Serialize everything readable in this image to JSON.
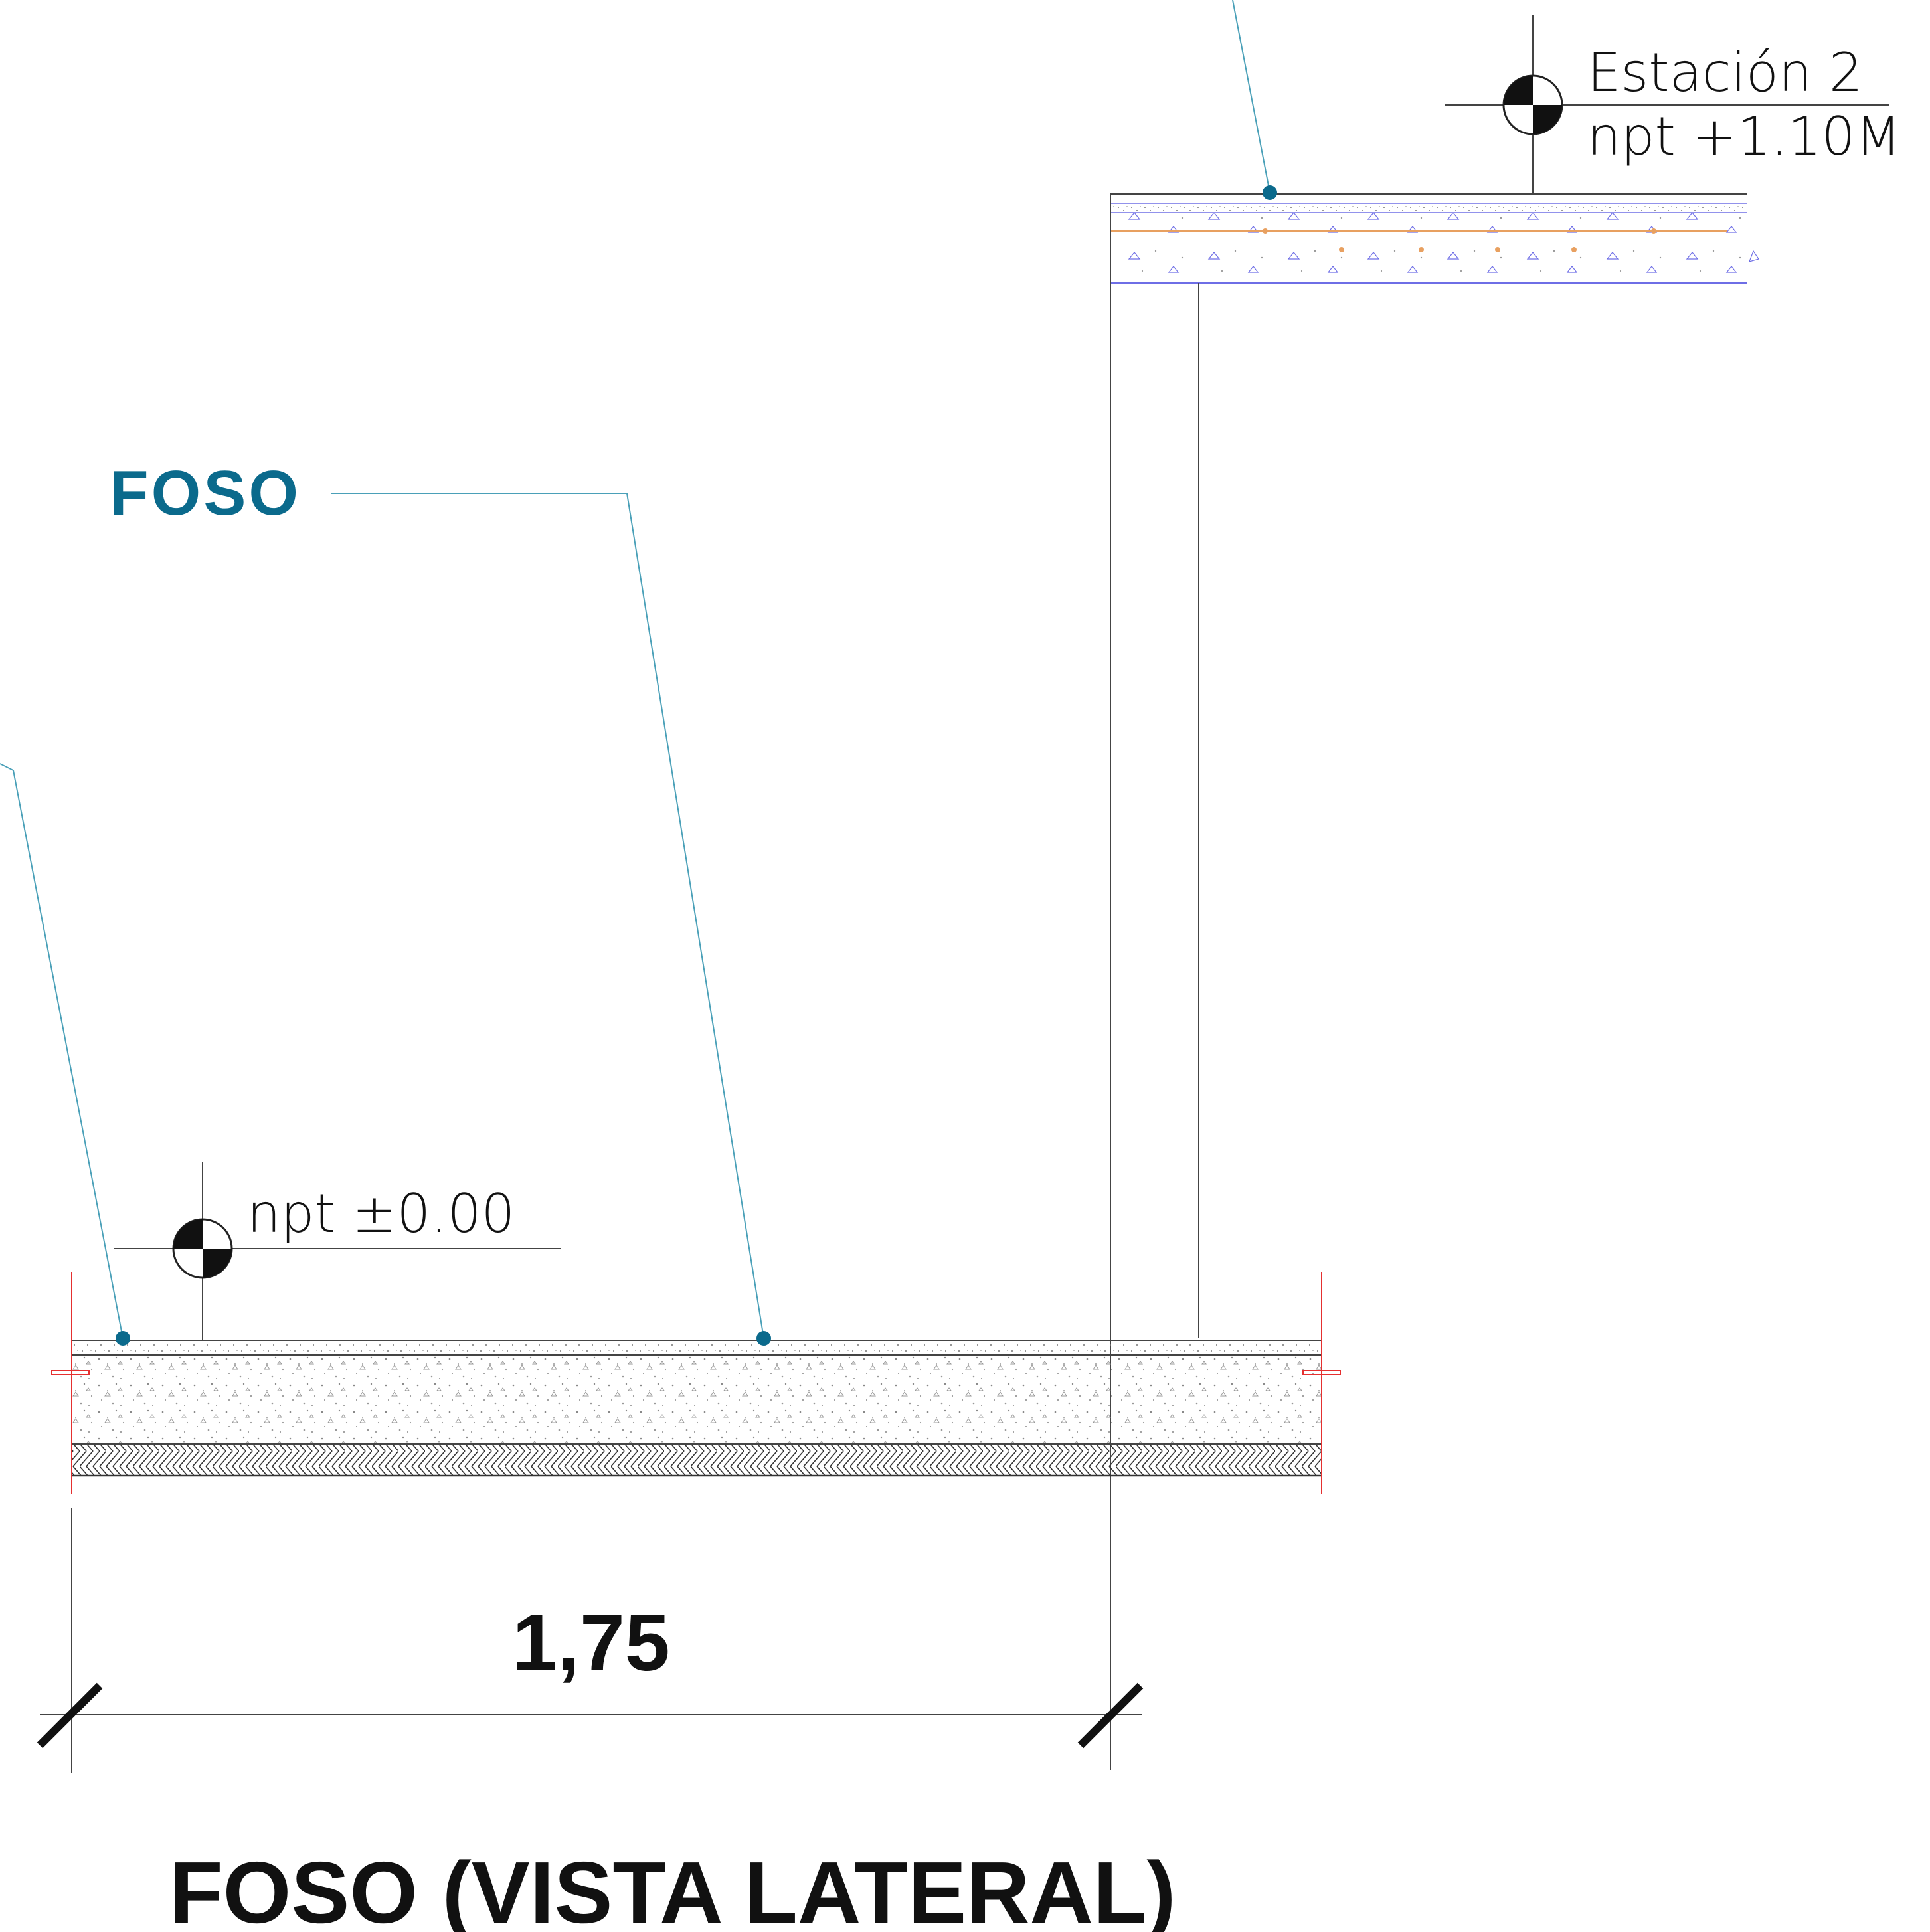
{
  "labels": {
    "callout_main": "FOSO",
    "level_upper_name": "Estación 2",
    "level_upper_value": "npt +1.10M",
    "level_lower_value": "npt ±0.00",
    "dimension_width": "1,75",
    "drawing_title": "FOSO (VISTA LATERAL)"
  },
  "colors": {
    "ink": "#1a1a1a",
    "thin_line": "#444444",
    "leader": "#4aa0b8",
    "accent": "#0b6a8c",
    "cut_red": "#e53030",
    "slab_blue": "#6e6ee6",
    "rebar_orange": "#e8a060",
    "hatch": "#333333"
  }
}
